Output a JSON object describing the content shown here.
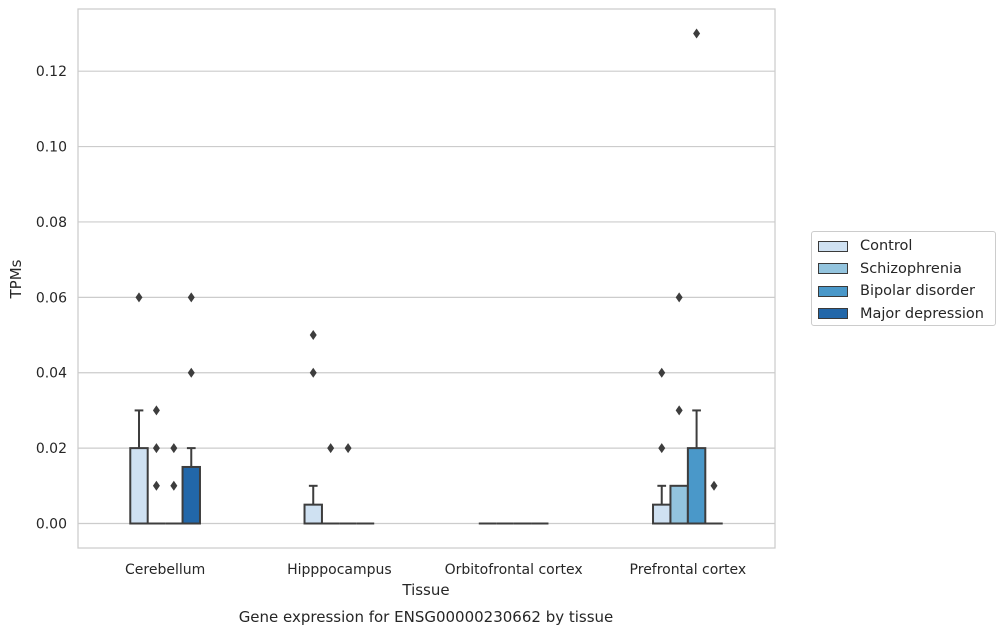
{
  "chart_data": {
    "type": "box",
    "title": "",
    "xlabel": "Tissue",
    "ylabel": "TPMs",
    "caption": "Gene expression for ENSG00000230662 by tissue",
    "ylim": [
      -0.0065,
      0.1365
    ],
    "yticks": [
      "0.00",
      "0.02",
      "0.04",
      "0.06",
      "0.08",
      "0.10",
      "0.12"
    ],
    "grid": true,
    "legend_position": "right",
    "categories": [
      "Cerebellum",
      "Hipppocampus",
      "Orbitofrontal cortex",
      "Prefrontal cortex"
    ],
    "series": [
      {
        "name": "Control",
        "color": "#cfe1f2",
        "boxes": [
          {
            "q1": 0,
            "median": 0,
            "q3": 0.02,
            "whisker_low": 0,
            "whisker_high": 0.03,
            "outliers": [
              0.06
            ]
          },
          {
            "q1": 0,
            "median": 0,
            "q3": 0.005,
            "whisker_low": 0,
            "whisker_high": 0.01,
            "outliers": [
              0.04,
              0.05
            ]
          },
          {
            "q1": 0,
            "median": 0,
            "q3": 0,
            "whisker_low": 0,
            "whisker_high": 0,
            "outliers": []
          },
          {
            "q1": 0,
            "median": 0,
            "q3": 0.005,
            "whisker_low": 0,
            "whisker_high": 0.01,
            "outliers": [
              0.02,
              0.04
            ]
          }
        ]
      },
      {
        "name": "Schizophrenia",
        "color": "#93c4de",
        "boxes": [
          {
            "q1": 0,
            "median": 0,
            "q3": 0,
            "whisker_low": 0,
            "whisker_high": 0,
            "outliers": [
              0.01,
              0.02,
              0.03
            ]
          },
          {
            "q1": 0,
            "median": 0,
            "q3": 0,
            "whisker_low": 0,
            "whisker_high": 0,
            "outliers": [
              0.02
            ]
          },
          {
            "q1": 0,
            "median": 0,
            "q3": 0,
            "whisker_low": 0,
            "whisker_high": 0,
            "outliers": []
          },
          {
            "q1": 0,
            "median": 0,
            "q3": 0.01,
            "whisker_low": 0,
            "whisker_high": 0.01,
            "outliers": [
              0.03,
              0.06
            ]
          }
        ]
      },
      {
        "name": "Bipolar disorder",
        "color": "#4a98c9",
        "boxes": [
          {
            "q1": 0,
            "median": 0,
            "q3": 0,
            "whisker_low": 0,
            "whisker_high": 0,
            "outliers": [
              0.01,
              0.02
            ]
          },
          {
            "q1": 0,
            "median": 0,
            "q3": 0,
            "whisker_low": 0,
            "whisker_high": 0,
            "outliers": [
              0.02
            ]
          },
          {
            "q1": 0,
            "median": 0,
            "q3": 0,
            "whisker_low": 0,
            "whisker_high": 0,
            "outliers": []
          },
          {
            "q1": 0,
            "median": 0,
            "q3": 0.02,
            "whisker_low": 0,
            "whisker_high": 0.03,
            "outliers": [
              0.13
            ]
          }
        ]
      },
      {
        "name": "Major depression",
        "color": "#2267a9",
        "boxes": [
          {
            "q1": 0,
            "median": 0,
            "q3": 0.015,
            "whisker_low": 0,
            "whisker_high": 0.02,
            "outliers": [
              0.04,
              0.06
            ]
          },
          {
            "q1": 0,
            "median": 0,
            "q3": 0,
            "whisker_low": 0,
            "whisker_high": 0,
            "outliers": []
          },
          {
            "q1": 0,
            "median": 0,
            "q3": 0,
            "whisker_low": 0,
            "whisker_high": 0,
            "outliers": []
          },
          {
            "q1": 0,
            "median": 0,
            "q3": 0,
            "whisker_low": 0,
            "whisker_high": 0,
            "outliers": [
              0.01
            ]
          }
        ]
      }
    ]
  }
}
